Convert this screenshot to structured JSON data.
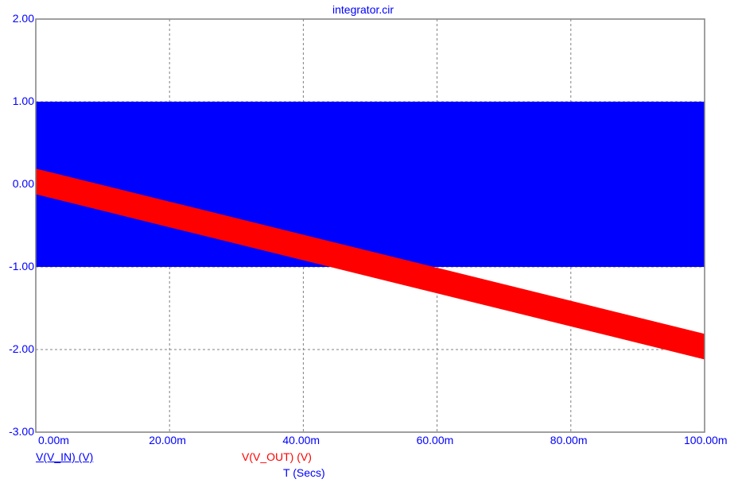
{
  "window": {
    "title": "integrator.cir"
  },
  "chart_data": {
    "type": "line",
    "title": "integrator.cir",
    "xlabel": "T (Secs)",
    "ylabel": "",
    "xlim": [
      0,
      0.1
    ],
    "ylim": [
      -3,
      2
    ],
    "grid": true,
    "x_ticks": [
      "0.00m",
      "20.00m",
      "40.00m",
      "60.00m",
      "80.00m",
      "100.00m"
    ],
    "y_ticks": [
      "2.00",
      "1.00",
      "0.00",
      "-1.00",
      "-2.00",
      "-3.00"
    ],
    "series": [
      {
        "name": "V(V_IN) (V)",
        "color": "#0000ff",
        "description": "high-frequency square wave between -1 and +1 V (renders as solid band)",
        "x": [
          0,
          0.1
        ],
        "y_max": [
          1.0,
          1.0
        ],
        "y_min": [
          -1.0,
          -1.0
        ]
      },
      {
        "name": "V(V_OUT) (V)",
        "color": "#ff0000",
        "description": "integrated output: ramp with triangular ripple (renders as sloped band)",
        "x": [
          0,
          0.02,
          0.04,
          0.06,
          0.08,
          0.1
        ],
        "y_max": [
          0.19,
          -0.21,
          -0.61,
          -1.01,
          -1.41,
          -1.81
        ],
        "y_min": [
          -0.12,
          -0.52,
          -0.92,
          -1.32,
          -1.72,
          -2.12
        ]
      }
    ]
  },
  "legend": {
    "v_in": "V(V_IN) (V)",
    "v_out": "V(V_OUT) (V)"
  },
  "colors": {
    "axis_text": "#0000ff",
    "v_in": "#0000ff",
    "v_out": "#ff0000",
    "grid": "#808080"
  }
}
